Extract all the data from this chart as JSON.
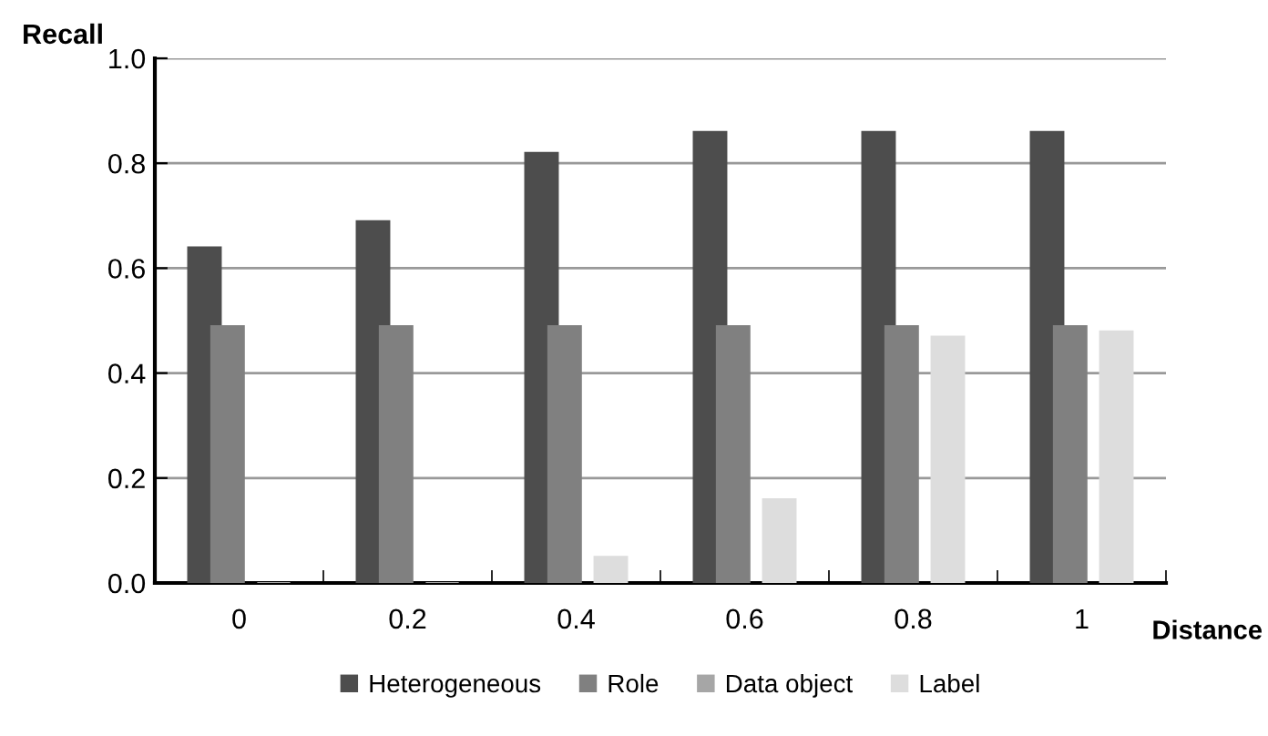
{
  "chart_data": {
    "type": "bar",
    "xlabel": "Distance",
    "ylabel": "Recall",
    "categories": [
      "0",
      "0.2",
      "0.4",
      "0.6",
      "0.8",
      "1"
    ],
    "series": [
      {
        "name": "Heterogeneous",
        "color": "#4d4d4d",
        "values": [
          0.64,
          0.69,
          0.82,
          0.86,
          0.86,
          0.86
        ]
      },
      {
        "name": "Role",
        "color": "#808080",
        "values": [
          0.49,
          0.49,
          0.49,
          0.49,
          0.49,
          0.49
        ]
      },
      {
        "name": "Data object",
        "color": "#a6a6a6",
        "values": [
          null,
          null,
          null,
          null,
          null,
          null
        ]
      },
      {
        "name": "Label",
        "color": "#dddddd",
        "values": [
          0,
          0,
          0.05,
          0.16,
          0.47,
          0.48
        ]
      }
    ],
    "ylim": [
      0,
      1.0
    ],
    "yticks": [
      {
        "value": 0,
        "label": "0.0"
      },
      {
        "value": 0.2,
        "label": "0.2"
      },
      {
        "value": 0.4,
        "label": "0.4"
      },
      {
        "value": 0.6,
        "label": "0.6"
      },
      {
        "value": 0.8,
        "label": "0.8"
      },
      {
        "value": 1.0,
        "label": "1.0"
      }
    ],
    "grid": "y",
    "legend": "bottom"
  }
}
